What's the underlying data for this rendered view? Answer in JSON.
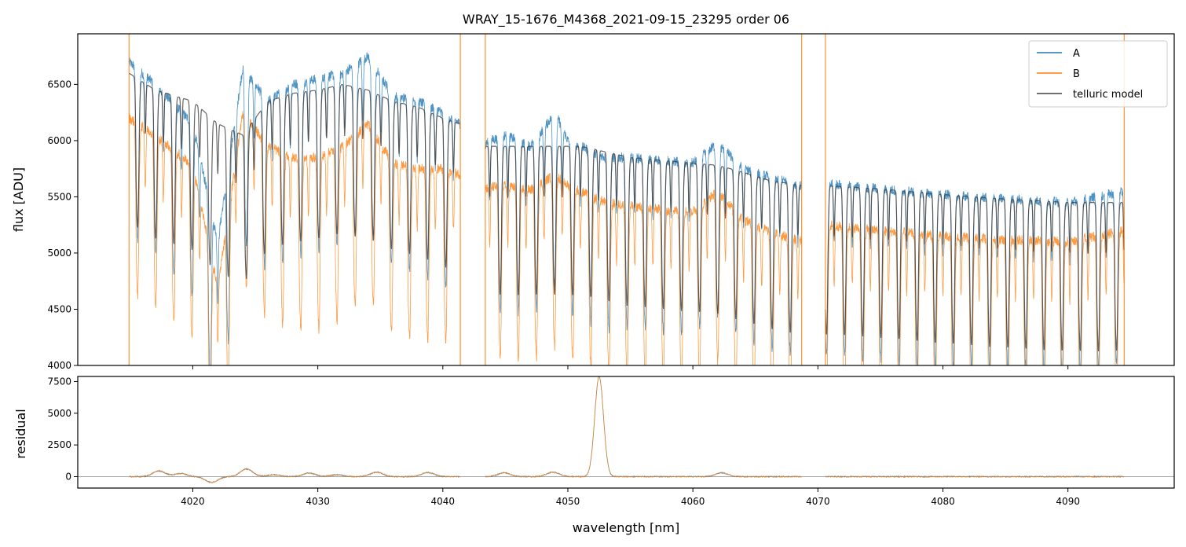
{
  "chart_data": [
    {
      "type": "line",
      "title": "WRAY_15-1676_M4368_2021-09-15_23295  order 06",
      "xlabel": "",
      "ylabel": "flux [ADU]",
      "xlim": [
        4010.8,
        4098.5
      ],
      "ylim": [
        4000,
        6950
      ],
      "x_ticks": [
        4020,
        4030,
        4040,
        4050,
        4060,
        4070,
        4080,
        4090
      ],
      "y_ticks": [
        4000,
        4500,
        5000,
        5500,
        6000,
        6500
      ],
      "grid": false,
      "legend": "top-right",
      "segments": [
        [
          4014.9,
          4041.4
        ],
        [
          4043.4,
          4068.7
        ],
        [
          4070.6,
          4094.5
        ]
      ],
      "series": [
        {
          "name": "A",
          "color": "#1f77b4",
          "alpha": 0.8,
          "envelope": [
            [
              4014.9,
              6700
            ],
            [
              4017,
              6500
            ],
            [
              4020,
              6150
            ],
            [
              4022,
              5100
            ],
            [
              4024,
              6650
            ],
            [
              4026,
              6350
            ],
            [
              4028,
              6500
            ],
            [
              4030,
              6550
            ],
            [
              4032,
              6600
            ],
            [
              4034,
              6750
            ],
            [
              4036,
              6400
            ],
            [
              4038,
              6350
            ],
            [
              4040,
              6250
            ],
            [
              4041.4,
              6150
            ],
            [
              4043.4,
              5980
            ],
            [
              4045,
              6050
            ],
            [
              4047,
              5950
            ],
            [
              4049,
              6250
            ],
            [
              4050,
              6000
            ],
            [
              4051,
              5950
            ],
            [
              4053,
              5850
            ],
            [
              4055,
              5850
            ],
            [
              4058,
              5820
            ],
            [
              4060,
              5800
            ],
            [
              4062,
              5980
            ],
            [
              4064,
              5750
            ],
            [
              4066,
              5680
            ],
            [
              4068.7,
              5600
            ],
            [
              4070.6,
              5620
            ],
            [
              4075,
              5570
            ],
            [
              4080,
              5520
            ],
            [
              4085,
              5480
            ],
            [
              4090,
              5450
            ],
            [
              4094.5,
              5550
            ]
          ]
        },
        {
          "name": "B",
          "color": "#ff7f0e",
          "alpha": 0.8,
          "envelope": [
            [
              4014.9,
              6200
            ],
            [
              4017,
              6050
            ],
            [
              4020,
              5780
            ],
            [
              4022,
              4700
            ],
            [
              4024,
              6250
            ],
            [
              4026,
              5950
            ],
            [
              4028,
              5850
            ],
            [
              4030,
              5850
            ],
            [
              4032,
              5950
            ],
            [
              4034,
              6150
            ],
            [
              4036,
              5800
            ],
            [
              4038,
              5750
            ],
            [
              4040,
              5750
            ],
            [
              4041.4,
              5700
            ],
            [
              4043.4,
              5580
            ],
            [
              4045,
              5600
            ],
            [
              4047,
              5560
            ],
            [
              4049,
              5700
            ],
            [
              4050,
              5600
            ],
            [
              4051,
              5550
            ],
            [
              4053,
              5450
            ],
            [
              4055,
              5420
            ],
            [
              4058,
              5380
            ],
            [
              4060,
              5370
            ],
            [
              4062,
              5550
            ],
            [
              4064,
              5300
            ],
            [
              4066,
              5200
            ],
            [
              4068.7,
              5100
            ],
            [
              4070.6,
              5250
            ],
            [
              4075,
              5200
            ],
            [
              4080,
              5150
            ],
            [
              4085,
              5120
            ],
            [
              4090,
              5100
            ],
            [
              4094.5,
              5200
            ]
          ]
        },
        {
          "name": "telluric model",
          "color": "#404040",
          "alpha": 0.8,
          "envelope": [
            [
              4014.9,
              6600
            ],
            [
              4017,
              6450
            ],
            [
              4020,
              6350
            ],
            [
              4022,
              6150
            ],
            [
              4024,
              6050
            ],
            [
              4026,
              6350
            ],
            [
              4028,
              6420
            ],
            [
              4030,
              6450
            ],
            [
              4032,
              6500
            ],
            [
              4034,
              6450
            ],
            [
              4036,
              6350
            ],
            [
              4038,
              6300
            ],
            [
              4040,
              6200
            ],
            [
              4041.4,
              6150
            ],
            [
              4043.4,
              5950
            ],
            [
              4045,
              5950
            ],
            [
              4047,
              5950
            ],
            [
              4049,
              5950
            ],
            [
              4050,
              5950
            ],
            [
              4051,
              5950
            ],
            [
              4053,
              5900
            ],
            [
              4055,
              5850
            ],
            [
              4058,
              5820
            ],
            [
              4060,
              5800
            ],
            [
              4062,
              5780
            ],
            [
              4064,
              5720
            ],
            [
              4066,
              5650
            ],
            [
              4068.7,
              5600
            ],
            [
              4070.6,
              5600
            ],
            [
              4075,
              5570
            ],
            [
              4080,
              5520
            ],
            [
              4085,
              5480
            ],
            [
              4090,
              5450
            ],
            [
              4094.5,
              5450
            ]
          ]
        }
      ],
      "telluric_line_spacing_nm": 1.45,
      "vertical_markers_x": [
        4014.9,
        4041.4,
        4043.4,
        4068.7,
        4070.6,
        4094.5
      ]
    },
    {
      "type": "line",
      "title": "",
      "xlabel": "wavelength [nm]",
      "ylabel": "residual",
      "xlim": [
        4010.8,
        4098.5
      ],
      "ylim": [
        -900,
        7900
      ],
      "x_ticks": [
        4020,
        4030,
        4040,
        4050,
        4060,
        4070,
        4080,
        4090
      ],
      "y_ticks": [
        0,
        2500,
        5000,
        7500
      ],
      "zero_line": true,
      "series": [
        {
          "name": "A",
          "color": "#1f77b4"
        },
        {
          "name": "B",
          "color": "#ff7f0e"
        }
      ],
      "bumps": [
        [
          4017.3,
          450
        ],
        [
          4019,
          250
        ],
        [
          4021.5,
          -450
        ],
        [
          4024.3,
          600
        ],
        [
          4026.5,
          150
        ],
        [
          4029.3,
          280
        ],
        [
          4031.5,
          150
        ],
        [
          4034.7,
          350
        ],
        [
          4038.8,
          330
        ],
        [
          4044.9,
          300
        ],
        [
          4048.8,
          350
        ],
        [
          4052.5,
          7900
        ],
        [
          4062.3,
          300
        ]
      ]
    }
  ]
}
